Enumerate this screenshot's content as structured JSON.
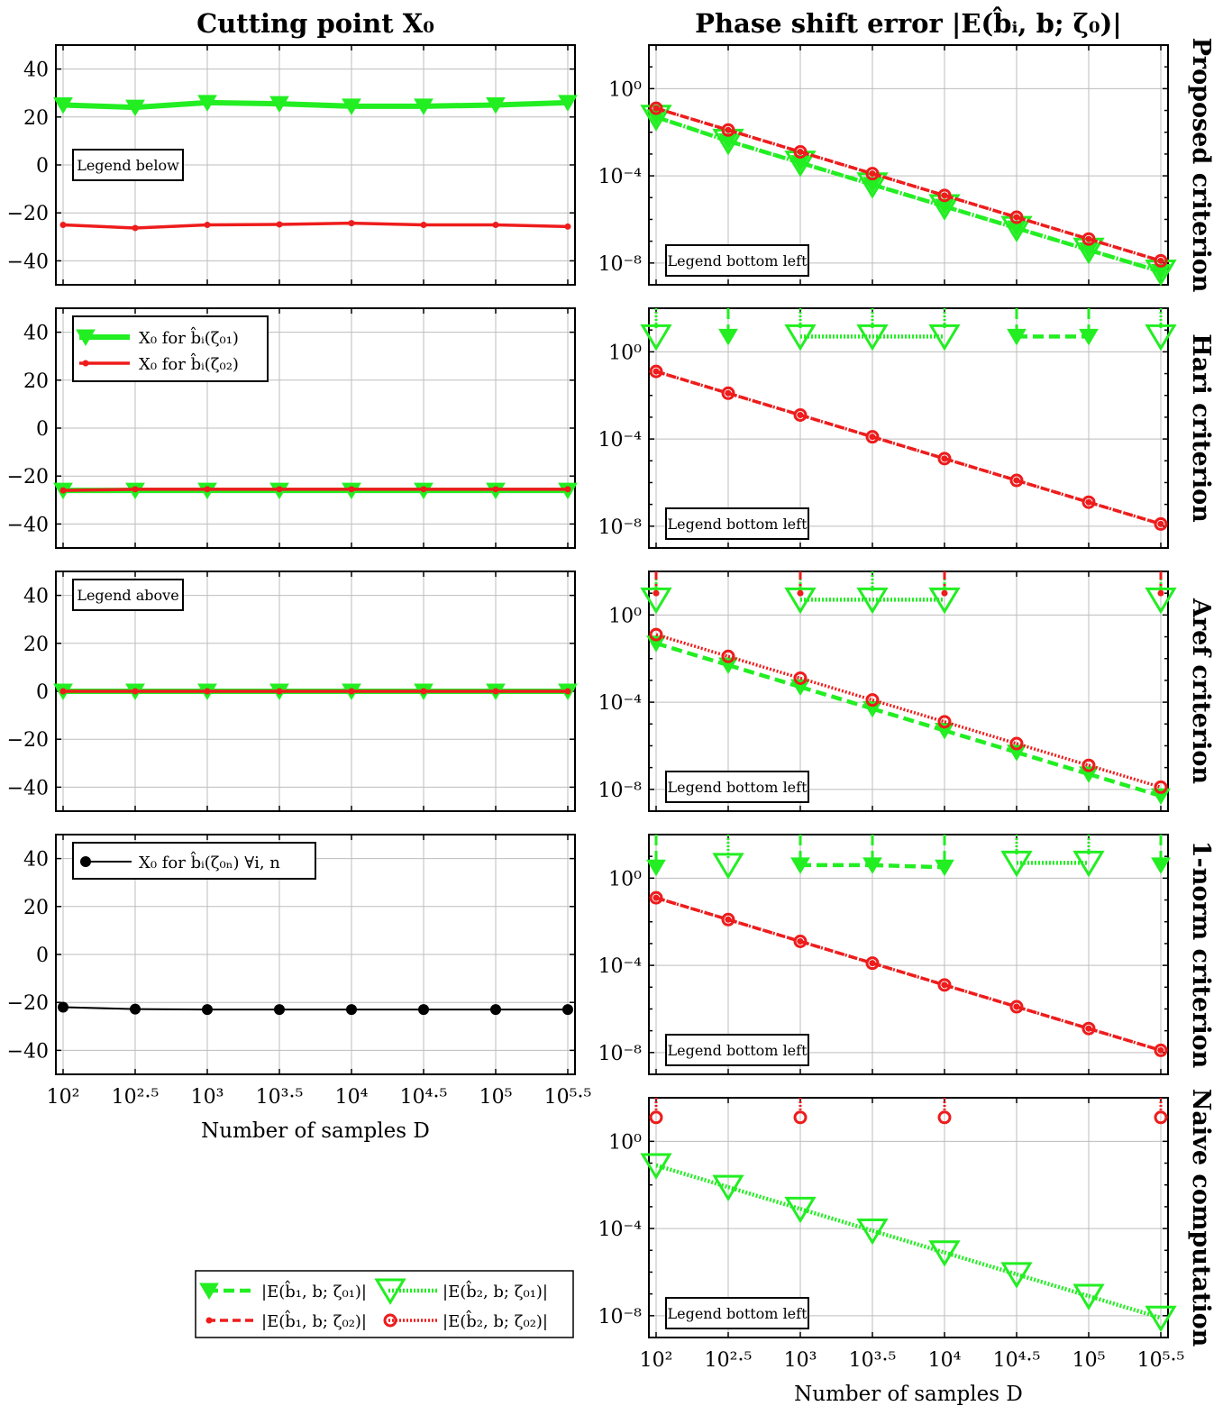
{
  "figure": {
    "col_titles": [
      "Cutting point X₀",
      "Phase shift error |E(b̂ᵢ, b; ζ₀)|"
    ],
    "row_titles": [
      "Proposed criterion",
      "Hari criterion",
      "Aref criterion",
      "1-norm criterion",
      "Naive computation"
    ],
    "xlabel": "Number of samples D",
    "x_ticks": [
      "10²",
      "10²·⁵",
      "10³",
      "10³·⁵",
      "10⁴",
      "10⁴·⁵",
      "10⁵",
      "10⁵·⁵"
    ],
    "left_y_ticks": [
      "40",
      "20",
      "0",
      "−20",
      "−40"
    ],
    "right_y_ticks": [
      "10⁰",
      "10⁻⁴",
      "10⁻⁸"
    ],
    "legend_notes": {
      "below": "Legend below",
      "above": "Legend above",
      "bottom_left": "Legend bottom left"
    },
    "left_legend_cut": [
      "X₀ for b̂ᵢ(ζ₀₁)",
      "X₀ for b̂ᵢ(ζ₀₂)"
    ],
    "left_legend_1norm": [
      "X₀ for b̂ᵢ(ζ₀ₙ) ∀i, n"
    ],
    "bottom_legend": [
      "|E(b̂₁, b; ζ₀₁)|",
      "|E(b̂₂, b; ζ₀₁)|",
      "|E(b̂₁, b; ζ₀₂)|",
      "|E(b̂₂, b; ζ₀₂)|"
    ],
    "colors": {
      "green": "#22ee22",
      "red": "#ee1c1c",
      "black": "#000000",
      "grid": "#bdbdbd"
    }
  },
  "chart_data": [
    {
      "type": "line",
      "panel": "cutting-proposed",
      "x": [
        2,
        2.5,
        3,
        3.5,
        4,
        4.5,
        5,
        5.5
      ],
      "xlim": [
        1.95,
        5.55
      ],
      "ylim": [
        -50,
        50
      ],
      "series": [
        {
          "name": "X₀ for b̂ᵢ(ζ₀₁)",
          "values": [
            25,
            24,
            26,
            25.5,
            24.5,
            24.5,
            25,
            26
          ]
        },
        {
          "name": "X₀ for b̂ᵢ(ζ₀₂)",
          "values": [
            -25,
            -26.3,
            -25,
            -24.8,
            -24.3,
            -25,
            -25,
            -25.7
          ]
        }
      ]
    },
    {
      "type": "line",
      "panel": "cutting-hari",
      "x": [
        2,
        2.5,
        3,
        3.5,
        4,
        4.5,
        5,
        5.5
      ],
      "xlim": [
        1.95,
        5.55
      ],
      "ylim": [
        -50,
        50
      ],
      "series": [
        {
          "name": "X₀ for b̂ᵢ(ζ₀₁)",
          "values": [
            -26,
            -26,
            -26,
            -26,
            -26,
            -26,
            -26,
            -26
          ]
        },
        {
          "name": "X₀ for b̂ᵢ(ζ₀₂)",
          "values": [
            -26,
            -25.5,
            -25.5,
            -25.5,
            -25.5,
            -25.5,
            -25.5,
            -25.5
          ]
        }
      ]
    },
    {
      "type": "line",
      "panel": "cutting-aref",
      "x": [
        2,
        2.5,
        3,
        3.5,
        4,
        4.5,
        5,
        5.5
      ],
      "xlim": [
        1.95,
        5.55
      ],
      "ylim": [
        -50,
        50
      ],
      "series": [
        {
          "name": "X₀ for b̂ᵢ(ζ₀₁)",
          "values": [
            0,
            0,
            0,
            0,
            0,
            0,
            0,
            0
          ]
        },
        {
          "name": "X₀ for b̂ᵢ(ζ₀₂)",
          "values": [
            0,
            0,
            0,
            0,
            0,
            0,
            0,
            0
          ]
        }
      ]
    },
    {
      "type": "line",
      "panel": "cutting-1norm",
      "x": [
        2,
        2.5,
        3,
        3.5,
        4,
        4.5,
        5,
        5.5
      ],
      "xlim": [
        1.95,
        5.55
      ],
      "ylim": [
        -50,
        50
      ],
      "series": [
        {
          "name": "X₀ for b̂ᵢ(ζ₀ₙ) ∀i, n",
          "values": [
            -22,
            -22.8,
            -23,
            -23,
            -23,
            -23,
            -23,
            -23
          ]
        }
      ]
    },
    {
      "type": "line",
      "panel": "error-proposed",
      "yscale": "log",
      "x": [
        2,
        2.5,
        3,
        3.5,
        4,
        4.5,
        5,
        5.5
      ],
      "xlim": [
        1.95,
        5.55
      ],
      "ylim_exp": [
        -9,
        2
      ],
      "series": [
        {
          "name": "|E(b̂₁, b; ζ₀₁)|",
          "values_exp": [
            -1.3,
            -2.4,
            -3.4,
            -4.4,
            -5.4,
            -6.4,
            -7.4,
            -8.4
          ]
        },
        {
          "name": "|E(b̂₂, b; ζ₀₁)|",
          "values_exp": [
            -1.3,
            -2.4,
            -3.4,
            -4.4,
            -5.4,
            -6.4,
            -7.4,
            -8.4
          ]
        },
        {
          "name": "|E(b̂₁, b; ζ₀₂)|",
          "values_exp": [
            -0.9,
            -1.9,
            -2.9,
            -3.9,
            -4.9,
            -5.9,
            -6.9,
            -7.9
          ]
        },
        {
          "name": "|E(b̂₂, b; ζ₀₂)|",
          "values_exp": [
            -0.9,
            -1.9,
            -2.9,
            -3.9,
            -4.9,
            -5.9,
            -6.9,
            -7.9
          ]
        }
      ]
    },
    {
      "type": "line",
      "panel": "error-hari",
      "yscale": "log",
      "x": [
        2,
        2.5,
        3,
        3.5,
        4,
        4.5,
        5,
        5.5
      ],
      "xlim": [
        1.95,
        5.55
      ],
      "ylim_exp": [
        -9,
        2
      ],
      "series": [
        {
          "name": "|E(b̂₁, b; ζ₀₁)|",
          "values_exp": [
            null,
            0.7,
            null,
            null,
            null,
            0.7,
            0.7,
            null
          ]
        },
        {
          "name": "|E(b̂₂, b; ζ₀₁)|",
          "values_exp": [
            0.7,
            null,
            0.7,
            0.7,
            0.7,
            null,
            null,
            0.7
          ]
        },
        {
          "name": "|E(b̂₁, b; ζ₀₂)|",
          "values_exp": [
            -0.9,
            -1.9,
            -2.9,
            -3.9,
            -4.9,
            -5.9,
            -6.9,
            -7.9
          ]
        },
        {
          "name": "|E(b̂₂, b; ζ₀₂)|",
          "values_exp": [
            -0.9,
            -1.9,
            -2.9,
            -3.9,
            -4.9,
            -5.9,
            -6.9,
            -7.9
          ]
        }
      ]
    },
    {
      "type": "line",
      "panel": "error-aref",
      "yscale": "log",
      "x": [
        2,
        2.5,
        3,
        3.5,
        4,
        4.5,
        5,
        5.5
      ],
      "xlim": [
        1.95,
        5.55
      ],
      "ylim_exp": [
        -9,
        2
      ],
      "series": [
        {
          "name": "|E(b̂₁, b; ζ₀₁)|",
          "values_exp": [
            -1.3,
            -2.3,
            -3.3,
            -4.3,
            -5.3,
            -6.3,
            -7.3,
            -8.3
          ]
        },
        {
          "name": "|E(b̂₂, b; ζ₀₁)|",
          "values_exp": [
            0.7,
            null,
            0.7,
            0.7,
            0.7,
            null,
            null,
            0.7
          ]
        },
        {
          "name": "|E(b̂₁, b; ζ₀₂)|",
          "values_exp": [
            1,
            null,
            1,
            null,
            1,
            null,
            null,
            1
          ]
        },
        {
          "name": "|E(b̂₂, b; ζ₀₂)|",
          "values_exp": [
            -0.9,
            -1.9,
            -2.9,
            -3.9,
            -4.9,
            -5.9,
            -6.9,
            -7.9
          ]
        }
      ]
    },
    {
      "type": "line",
      "panel": "error-1norm",
      "yscale": "log",
      "x": [
        2,
        2.5,
        3,
        3.5,
        4,
        4.5,
        5,
        5.5
      ],
      "xlim": [
        1.95,
        5.55
      ],
      "ylim_exp": [
        -9,
        2
      ],
      "series": [
        {
          "name": "|E(b̂₁, b; ζ₀₁)|",
          "values_exp": [
            0.5,
            null,
            0.6,
            0.6,
            0.5,
            null,
            null,
            0.6
          ]
        },
        {
          "name": "|E(b̂₂, b; ζ₀₁)|",
          "values_exp": [
            null,
            0.6,
            null,
            null,
            null,
            0.7,
            0.7,
            null
          ]
        },
        {
          "name": "|E(b̂₁, b; ζ₀₂)|",
          "values_exp": [
            -0.9,
            -1.9,
            -2.9,
            -3.9,
            -4.9,
            -5.9,
            -6.9,
            -7.9
          ]
        },
        {
          "name": "|E(b̂₂, b; ζ₀₂)|",
          "values_exp": [
            -0.9,
            -1.9,
            -2.9,
            -3.9,
            -4.9,
            -5.9,
            -6.9,
            -7.9
          ]
        }
      ]
    },
    {
      "type": "line",
      "panel": "error-naive",
      "yscale": "log",
      "x": [
        2,
        2.5,
        3,
        3.5,
        4,
        4.5,
        5,
        5.5
      ],
      "xlim": [
        1.95,
        5.55
      ],
      "ylim_exp": [
        -9,
        2
      ],
      "series": [
        {
          "name": "|E(b̂₂, b; ζ₀₁)|",
          "values_exp": [
            -1.1,
            -2.1,
            -3.1,
            -4.1,
            -5.1,
            -6.1,
            -7.1,
            -8.1
          ]
        },
        {
          "name": "|E(b̂₂, b; ζ₀₂)|",
          "values_exp": [
            1.1,
            null,
            1.1,
            null,
            1.1,
            null,
            null,
            1.1
          ]
        }
      ]
    }
  ]
}
